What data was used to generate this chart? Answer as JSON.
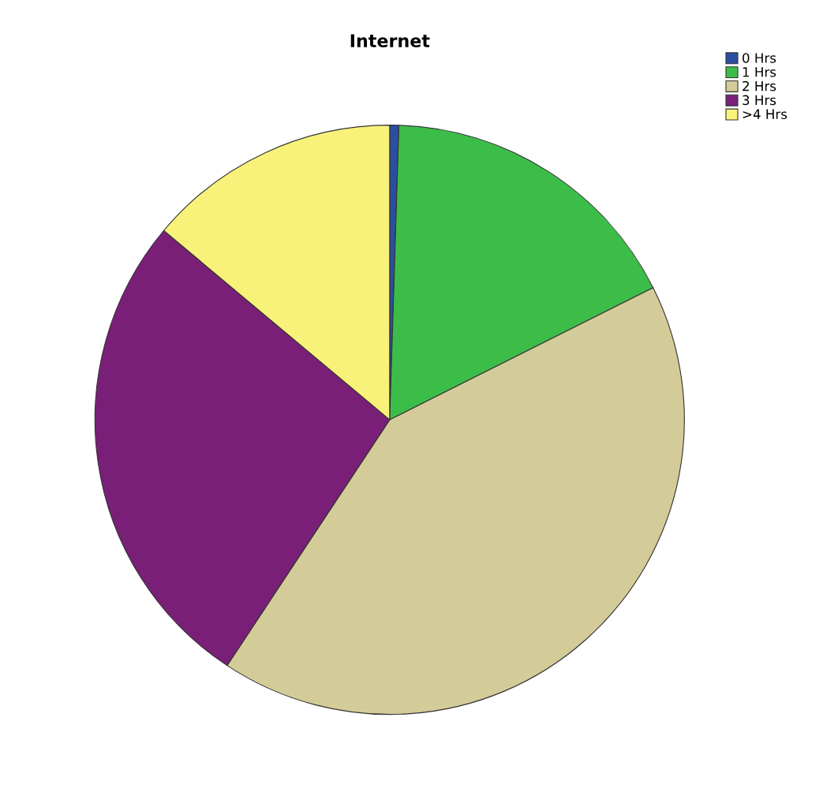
{
  "chart_data": {
    "type": "pie",
    "title": "Internet",
    "categories": [
      "0 Hrs",
      "1 Hrs",
      "2 Hrs",
      "3 Hrs",
      ">4 Hrs"
    ],
    "values": [
      0.5,
      17.1,
      41.7,
      26.8,
      13.9
    ],
    "colors": [
      "#2a4fa0",
      "#3cbd4a",
      "#d4cc98",
      "#7a1f78",
      "#f8f27a"
    ],
    "legend": "top right"
  }
}
